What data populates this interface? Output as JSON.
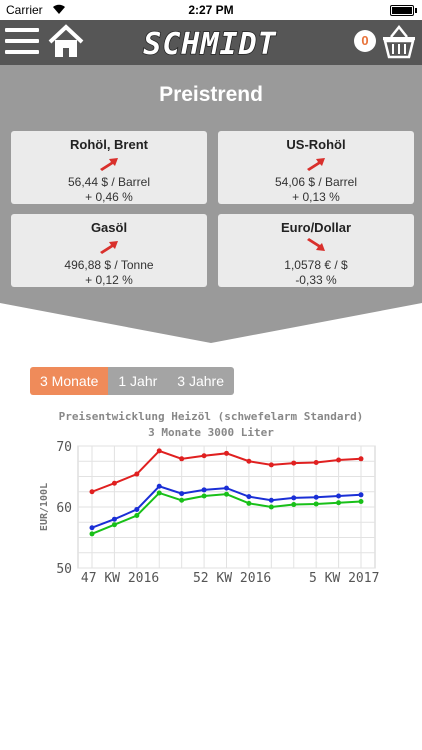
{
  "status_bar": {
    "carrier": "Carrier",
    "time": "2:27 PM"
  },
  "header": {
    "brand": "SCHMIDT",
    "cart_count": "0"
  },
  "trend": {
    "title": "Preistrend",
    "cards": [
      {
        "name": "Rohöl, Brent",
        "price": "56,44 $ / Barrel",
        "change": "+ 0,46 %",
        "direction": "up"
      },
      {
        "name": "US-Rohöl",
        "price": "54,06 $ / Barrel",
        "change": "+ 0,13 %",
        "direction": "up"
      },
      {
        "name": "Gasöl",
        "price": "496,88 $ / Tonne",
        "change": "+ 0,12 %",
        "direction": "up"
      },
      {
        "name": "Euro/Dollar",
        "price": "1,0578 € / $",
        "change": "-0,33 %",
        "direction": "down"
      }
    ]
  },
  "range_tabs": [
    {
      "label": "3 Monate",
      "active": true
    },
    {
      "label": "1 Jahr",
      "active": false
    },
    {
      "label": "3 Jahre",
      "active": false
    }
  ],
  "colors": {
    "header_bg": "#565656",
    "trend_bg": "#9a9a9a",
    "card_bg": "#ebebeb",
    "arrow": "#d9302c",
    "tab_active": "#ef8b5a",
    "tab_inactive": "#a4a4a4"
  },
  "chart_data": {
    "type": "line",
    "title": "Preisentwicklung Heizöl (schwefelarm Standard)",
    "subtitle": "3 Monate 3000 Liter",
    "ylabel": "EUR/100L",
    "ylim": [
      50,
      70
    ],
    "yticks": [
      50,
      60,
      70
    ],
    "x": [
      0,
      1,
      2,
      3,
      4,
      5,
      6,
      7,
      8,
      9,
      10,
      11,
      12
    ],
    "xtick_labels": [
      {
        "x": 1.25,
        "label": "47 KW 2016"
      },
      {
        "x": 6.25,
        "label": "52 KW 2016"
      },
      {
        "x": 11.25,
        "label": "5 KW 2017"
      }
    ],
    "grid": true,
    "series": [
      {
        "color": "#e02020",
        "values": [
          62.5,
          63.9,
          65.4,
          69.2,
          67.9,
          68.4,
          68.8,
          67.5,
          66.9,
          67.2,
          67.3,
          67.7,
          67.9
        ]
      },
      {
        "color": "#1a2fd6",
        "values": [
          56.6,
          58.0,
          59.6,
          63.4,
          62.2,
          62.8,
          63.1,
          61.7,
          61.1,
          61.5,
          61.6,
          61.8,
          62.0
        ]
      },
      {
        "color": "#18c018",
        "values": [
          55.6,
          57.1,
          58.6,
          62.3,
          61.1,
          61.8,
          62.1,
          60.6,
          60.0,
          60.4,
          60.5,
          60.7,
          60.9
        ]
      }
    ]
  }
}
